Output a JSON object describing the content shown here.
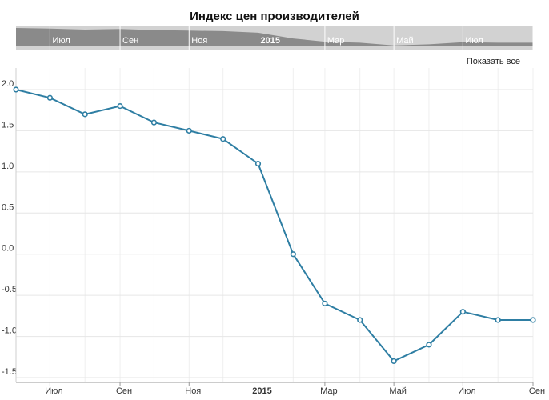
{
  "title": "Индекс цен производителей",
  "show_all_label": "Показать все",
  "colors": {
    "line": "#2e7ea3",
    "grid": "#e6e6e6",
    "navigator_bg": "#d2d2d2",
    "navigator_series": "#8a8a8a"
  },
  "chart_data": {
    "type": "line",
    "title": "Индекс цен производителей",
    "xlabel": "",
    "ylabel": "",
    "ylim": [
      -1.5,
      2.0
    ],
    "grid": true,
    "y_ticks": [
      "2.0",
      "1.5",
      "1.0",
      "0.5",
      "0.0",
      "-0.5",
      "-1.0",
      "-1.5"
    ],
    "x_ticks": [
      {
        "label": "Июл",
        "date": "2014-07-01",
        "bold": false
      },
      {
        "label": "Сен",
        "date": "2014-09-01",
        "bold": false
      },
      {
        "label": "Ноя",
        "date": "2014-11-01",
        "bold": false
      },
      {
        "label": "2015",
        "date": "2015-01-01",
        "bold": true
      },
      {
        "label": "Мар",
        "date": "2015-03-01",
        "bold": false
      },
      {
        "label": "Май",
        "date": "2015-05-01",
        "bold": false
      },
      {
        "label": "Июл",
        "date": "2015-07-01",
        "bold": false
      },
      {
        "label": "Сен",
        "date": "2015-09-01",
        "bold": false
      }
    ],
    "series": [
      {
        "points": [
          {
            "x": "2014-06-01",
            "y": 2.0
          },
          {
            "x": "2014-07-01",
            "y": 1.9
          },
          {
            "x": "2014-08-01",
            "y": 1.7
          },
          {
            "x": "2014-09-01",
            "y": 1.8
          },
          {
            "x": "2014-10-01",
            "y": 1.6
          },
          {
            "x": "2014-11-01",
            "y": 1.5
          },
          {
            "x": "2014-12-01",
            "y": 1.4
          },
          {
            "x": "2015-01-01",
            "y": 1.1
          },
          {
            "x": "2015-02-01",
            "y": 0.0
          },
          {
            "x": "2015-03-01",
            "y": -0.6
          },
          {
            "x": "2015-04-01",
            "y": -0.8
          },
          {
            "x": "2015-05-01",
            "y": -1.3
          },
          {
            "x": "2015-06-01",
            "y": -1.1
          },
          {
            "x": "2015-07-01",
            "y": -0.7
          },
          {
            "x": "2015-08-01",
            "y": -0.8
          },
          {
            "x": "2015-09-01",
            "y": -0.8
          }
        ]
      }
    ]
  }
}
